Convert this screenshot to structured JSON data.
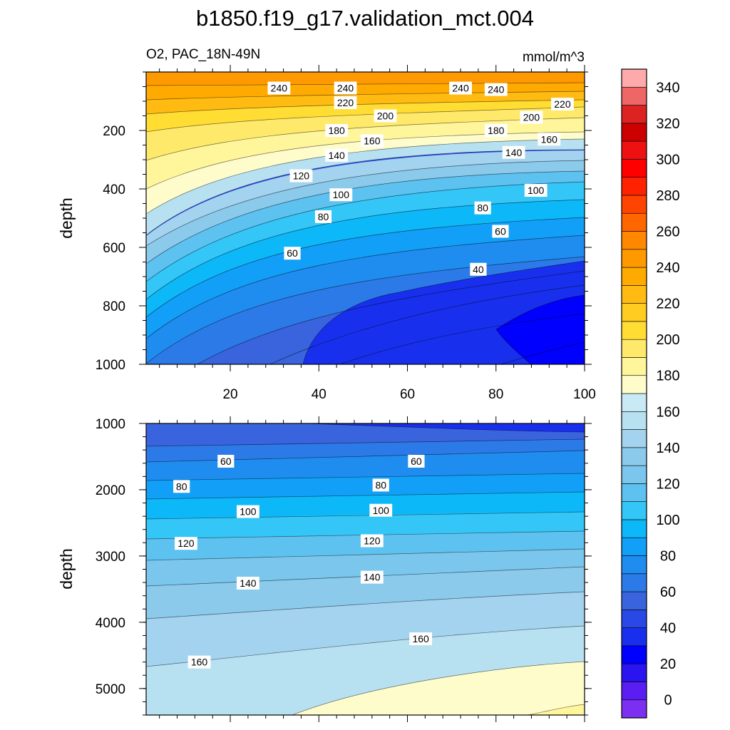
{
  "chart_data": {
    "type": "contour",
    "title": "b1850.f19_g17.validation_mct.004",
    "subtitle_left": "O2, PAC_18N-49N",
    "subtitle_right": "mmol/m^3",
    "colorbar": {
      "levels": [
        0,
        10,
        20,
        30,
        40,
        50,
        60,
        70,
        80,
        90,
        100,
        110,
        120,
        130,
        140,
        150,
        160,
        170,
        180,
        190,
        200,
        210,
        220,
        230,
        240,
        250,
        260,
        270,
        280,
        290,
        300,
        310,
        320,
        330,
        340,
        350
      ],
      "labels": [
        "0",
        "20",
        "40",
        "60",
        "80",
        "100",
        "120",
        "140",
        "160",
        "180",
        "200",
        "220",
        "240",
        "260",
        "280",
        "300",
        "320",
        "340"
      ],
      "colors": [
        "#7b2ff0",
        "#5a1ef2",
        "#2a14f0",
        "#0000ff",
        "#1830ee",
        "#2a48e6",
        "#3a64dd",
        "#2c7ae8",
        "#1f8df0",
        "#129ff7",
        "#0db8f8",
        "#33c6f6",
        "#5dc2f0",
        "#7ac6ec",
        "#8bcaea",
        "#a3d3ee",
        "#b7e0f1",
        "#c9e9f4",
        "#fffccc",
        "#fff59a",
        "#ffe96a",
        "#ffdd33",
        "#ffcc22",
        "#ffbb11",
        "#ffaa00",
        "#ff9900",
        "#ff8800",
        "#ff6600",
        "#ff4400",
        "#ff2200",
        "#ff0000",
        "#ee1111",
        "#cc0000",
        "#dd2222",
        "#ee6666",
        "#ffaaaa"
      ]
    },
    "panels": [
      {
        "name": "upper",
        "ylabel": "depth",
        "xlim": [
          1,
          100
        ],
        "ylim": [
          1000,
          0
        ],
        "xticks": [
          "20",
          "40",
          "60",
          "80",
          "100"
        ],
        "yticks": [
          "200",
          "400",
          "600",
          "800",
          "1000"
        ],
        "contour_labels": [
          {
            "x": 31,
            "y": 55,
            "text": "240"
          },
          {
            "x": 46,
            "y": 55,
            "text": "240"
          },
          {
            "x": 72,
            "y": 55,
            "text": "240"
          },
          {
            "x": 80,
            "y": 60,
            "text": "240"
          },
          {
            "x": 46,
            "y": 105,
            "text": "220"
          },
          {
            "x": 95,
            "y": 110,
            "text": "220"
          },
          {
            "x": 55,
            "y": 150,
            "text": "200"
          },
          {
            "x": 88,
            "y": 155,
            "text": "200"
          },
          {
            "x": 44,
            "y": 200,
            "text": "180"
          },
          {
            "x": 80,
            "y": 200,
            "text": "180"
          },
          {
            "x": 52,
            "y": 235,
            "text": "160"
          },
          {
            "x": 92,
            "y": 230,
            "text": "160"
          },
          {
            "x": 44,
            "y": 285,
            "text": "140"
          },
          {
            "x": 84,
            "y": 275,
            "text": "140"
          },
          {
            "x": 36,
            "y": 355,
            "text": "120"
          },
          {
            "x": 45,
            "y": 420,
            "text": "100"
          },
          {
            "x": 89,
            "y": 405,
            "text": "100"
          },
          {
            "x": 41,
            "y": 495,
            "text": "80"
          },
          {
            "x": 77,
            "y": 465,
            "text": "80"
          },
          {
            "x": 81,
            "y": 545,
            "text": "60"
          },
          {
            "x": 34,
            "y": 620,
            "text": "60"
          },
          {
            "x": 76,
            "y": 675,
            "text": "40"
          }
        ]
      },
      {
        "name": "lower",
        "ylabel": "depth",
        "xlim": [
          1,
          100
        ],
        "ylim": [
          5400,
          1000
        ],
        "yticks": [
          "1000",
          "2000",
          "3000",
          "4000",
          "5000"
        ],
        "contour_labels": [
          {
            "x": 19,
            "y": 1570,
            "text": "60"
          },
          {
            "x": 62,
            "y": 1570,
            "text": "60"
          },
          {
            "x": 9,
            "y": 1950,
            "text": "80"
          },
          {
            "x": 54,
            "y": 1930,
            "text": "80"
          },
          {
            "x": 24,
            "y": 2330,
            "text": "100"
          },
          {
            "x": 54,
            "y": 2310,
            "text": "100"
          },
          {
            "x": 10,
            "y": 2810,
            "text": "120"
          },
          {
            "x": 52,
            "y": 2770,
            "text": "120"
          },
          {
            "x": 24,
            "y": 3410,
            "text": "140"
          },
          {
            "x": 52,
            "y": 3320,
            "text": "140"
          },
          {
            "x": 13,
            "y": 4600,
            "text": "160"
          },
          {
            "x": 63,
            "y": 4250,
            "text": "160"
          }
        ]
      }
    ]
  }
}
